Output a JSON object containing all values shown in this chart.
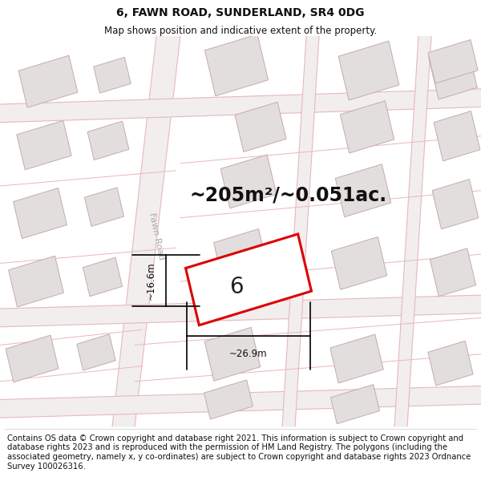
{
  "title": "6, FAWN ROAD, SUNDERLAND, SR4 0DG",
  "subtitle": "Map shows position and indicative extent of the property.",
  "area_text": "~205m²/~0.051ac.",
  "property_number": "6",
  "dim_width": "~26.9m",
  "dim_height": "~16.6m",
  "road_label": "Fawn Road",
  "footer_text": "Contains OS data © Crown copyright and database right 2021. This information is subject to Crown copyright and database rights 2023 and is reproduced with the permission of HM Land Registry. The polygons (including the associated geometry, namely x, y co-ordinates) are subject to Crown copyright and database rights 2023 Ordnance Survey 100026316.",
  "bg_color": "#ffffff",
  "map_bg": "#f7f4f4",
  "building_fill": "#e2dede",
  "building_stroke": "#c8aaaa",
  "property_fill": "#ffffff",
  "property_stroke": "#dd0000",
  "street_line_color": "#e8b8b8",
  "title_fontsize": 10,
  "subtitle_fontsize": 8.5,
  "area_fontsize": 17,
  "number_fontsize": 20,
  "footer_fontsize": 7.2,
  "dim_fontsize": 8.5,
  "road_label_fontsize": 8,
  "road_label_color": "#aaaaaa"
}
